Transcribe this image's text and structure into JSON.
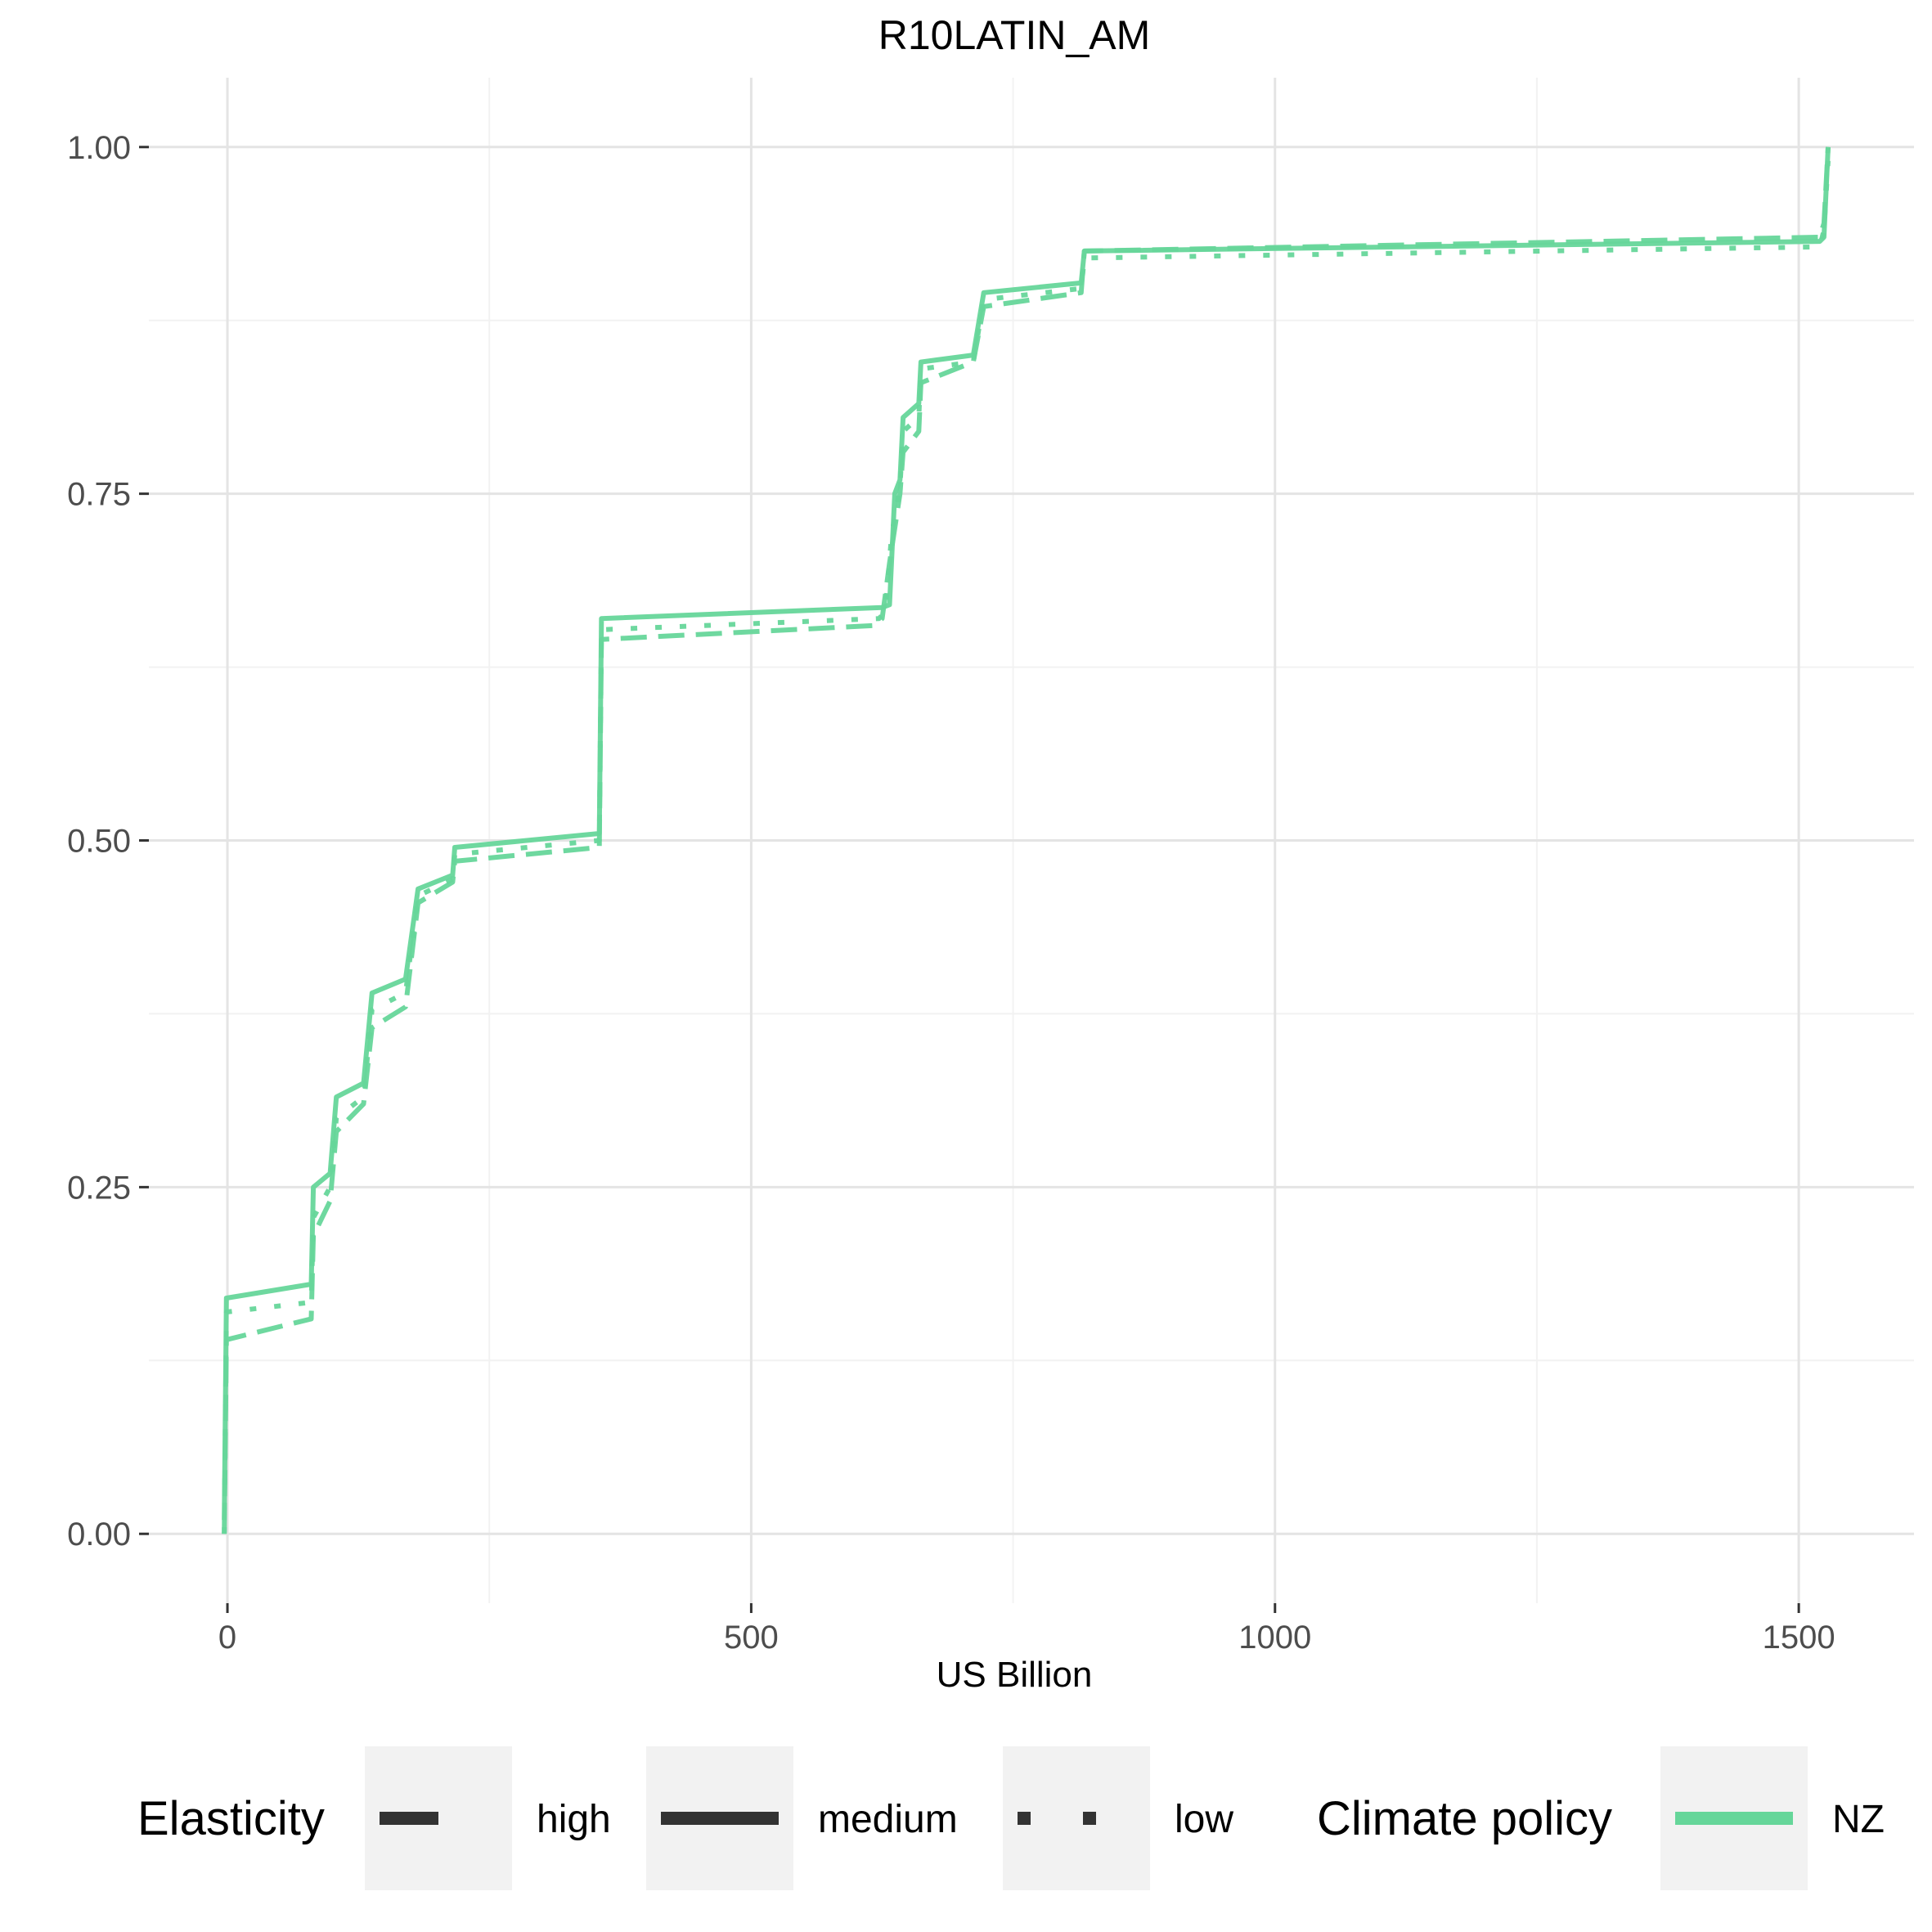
{
  "chart_data": {
    "type": "line",
    "title": "R10LATIN_AM",
    "xlabel": "US Billion",
    "ylabel": "",
    "xlim": [
      -75,
      1610
    ],
    "ylim": [
      -0.05,
      1.05
    ],
    "x_ticks": [
      0,
      500,
      1000,
      1500
    ],
    "x_tick_labels": [
      "0",
      "500",
      "1000",
      "1500"
    ],
    "y_ticks": [
      0,
      0.25,
      0.5,
      0.75,
      1.0
    ],
    "y_tick_labels": [
      "0.00",
      "0.25",
      "0.50",
      "0.75",
      "1.00"
    ],
    "grid": true,
    "legend_position": "bottom",
    "legend": {
      "elasticity_title": "Elasticity",
      "elasticity_items": [
        {
          "label": "high",
          "linetype": "dashed"
        },
        {
          "label": "medium",
          "linetype": "solid"
        },
        {
          "label": "low",
          "linetype": "dotted"
        }
      ],
      "policy_title": "Climate policy",
      "policy_items": [
        {
          "label": "NZ",
          "color": "#66d69a"
        }
      ]
    },
    "series": [
      {
        "elasticity": "medium",
        "policy": "NZ",
        "points": [
          [
            -3,
            0.01
          ],
          [
            -1,
            0.17
          ],
          [
            80,
            0.18
          ],
          [
            82,
            0.25
          ],
          [
            98,
            0.26
          ],
          [
            104,
            0.315
          ],
          [
            130,
            0.325
          ],
          [
            138,
            0.39
          ],
          [
            170,
            0.4
          ],
          [
            182,
            0.465
          ],
          [
            215,
            0.475
          ],
          [
            217,
            0.495
          ],
          [
            355,
            0.505
          ],
          [
            357,
            0.66
          ],
          [
            625,
            0.668
          ],
          [
            632,
            0.67
          ],
          [
            637,
            0.75
          ],
          [
            642,
            0.76
          ],
          [
            645,
            0.805
          ],
          [
            660,
            0.815
          ],
          [
            662,
            0.845
          ],
          [
            712,
            0.85
          ],
          [
            722,
            0.895
          ],
          [
            815,
            0.902
          ],
          [
            818,
            0.925
          ],
          [
            1520,
            0.932
          ],
          [
            1524,
            0.935
          ],
          [
            1528,
            1.0
          ]
        ]
      },
      {
        "elasticity": "high",
        "policy": "NZ",
        "points": [
          [
            -3,
            0.0
          ],
          [
            -1,
            0.14
          ],
          [
            80,
            0.155
          ],
          [
            82,
            0.215
          ],
          [
            98,
            0.24
          ],
          [
            104,
            0.29
          ],
          [
            130,
            0.31
          ],
          [
            138,
            0.365
          ],
          [
            170,
            0.38
          ],
          [
            182,
            0.455
          ],
          [
            215,
            0.47
          ],
          [
            217,
            0.485
          ],
          [
            355,
            0.495
          ],
          [
            357,
            0.645
          ],
          [
            618,
            0.655
          ],
          [
            625,
            0.66
          ],
          [
            632,
            0.7
          ],
          [
            642,
            0.75
          ],
          [
            645,
            0.78
          ],
          [
            660,
            0.795
          ],
          [
            662,
            0.83
          ],
          [
            712,
            0.845
          ],
          [
            722,
            0.885
          ],
          [
            815,
            0.895
          ],
          [
            818,
            0.925
          ],
          [
            1520,
            0.935
          ],
          [
            1524,
            0.945
          ],
          [
            1528,
            1.0
          ]
        ]
      },
      {
        "elasticity": "low",
        "policy": "NZ",
        "points": [
          [
            -3,
            0.0
          ],
          [
            -1,
            0.16
          ],
          [
            80,
            0.167
          ],
          [
            82,
            0.228
          ],
          [
            98,
            0.25
          ],
          [
            104,
            0.3
          ],
          [
            130,
            0.315
          ],
          [
            138,
            0.378
          ],
          [
            170,
            0.39
          ],
          [
            182,
            0.46
          ],
          [
            215,
            0.472
          ],
          [
            217,
            0.49
          ],
          [
            355,
            0.5
          ],
          [
            357,
            0.652
          ],
          [
            622,
            0.66
          ],
          [
            628,
            0.665
          ],
          [
            634,
            0.72
          ],
          [
            642,
            0.755
          ],
          [
            645,
            0.795
          ],
          [
            660,
            0.805
          ],
          [
            662,
            0.84
          ],
          [
            712,
            0.845
          ],
          [
            722,
            0.89
          ],
          [
            815,
            0.898
          ],
          [
            818,
            0.92
          ],
          [
            1520,
            0.928
          ],
          [
            1524,
            0.94
          ],
          [
            1528,
            0.99
          ]
        ]
      }
    ]
  }
}
